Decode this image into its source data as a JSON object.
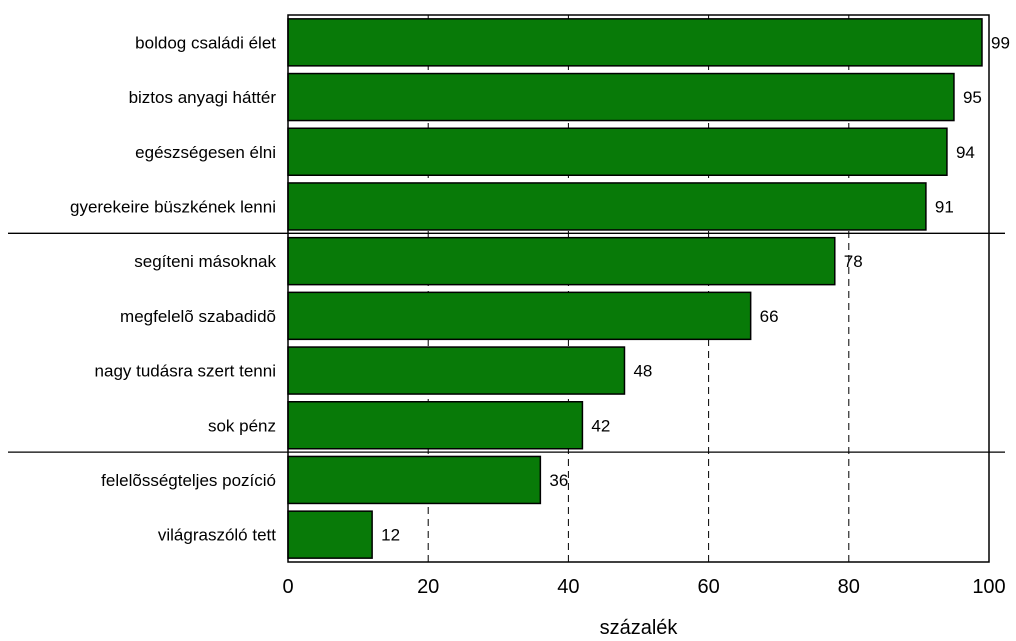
{
  "chart_data": {
    "type": "bar",
    "orientation": "horizontal",
    "categories": [
      "boldog családi élet",
      "biztos anyagi háttér",
      "egészségesen élni",
      "gyerekeire büszkének lenni",
      "segíteni másoknak",
      "megfelelõ szabadidõ",
      "nagy tudásra szert tenni",
      "sok pénz",
      "felelõsségteljes pozíció",
      "világraszóló tett"
    ],
    "values": [
      99,
      95,
      94,
      91,
      78,
      66,
      48,
      42,
      36,
      12
    ],
    "xlabel": "százalék",
    "ylabel": "",
    "xlim": [
      0,
      100
    ],
    "xticks": [
      "0",
      "20",
      "40",
      "60",
      "80",
      "100"
    ],
    "grid": "dashed vertical lines at 20, 40, 60, 80",
    "group_separators_after_index": [
      3,
      7
    ],
    "colors": {
      "bar_fill": "#087a08",
      "bar_stroke": "#000000",
      "grid": "#000000"
    }
  }
}
